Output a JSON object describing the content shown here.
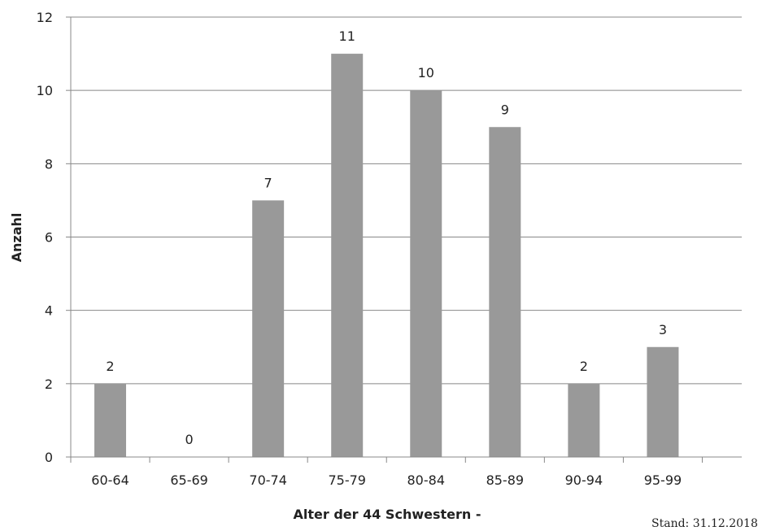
{
  "chart_data": {
    "type": "bar",
    "categories": [
      "60-64",
      "65-69",
      "70-74",
      "75-79",
      "80-84",
      "85-89",
      "90-94",
      "95-99"
    ],
    "values": [
      2,
      0,
      7,
      11,
      10,
      9,
      2,
      3
    ],
    "title": "",
    "xlabel": "Alter der 44 Schwestern -",
    "ylabel": "Anzahl",
    "ylim": [
      0,
      12
    ],
    "yticks": [
      0,
      2,
      4,
      6,
      8,
      10,
      12
    ],
    "grid": true,
    "bar_color": "#999999",
    "grid_color": "#888888"
  },
  "footer": {
    "stand": "Stand: 31.12.2018"
  }
}
